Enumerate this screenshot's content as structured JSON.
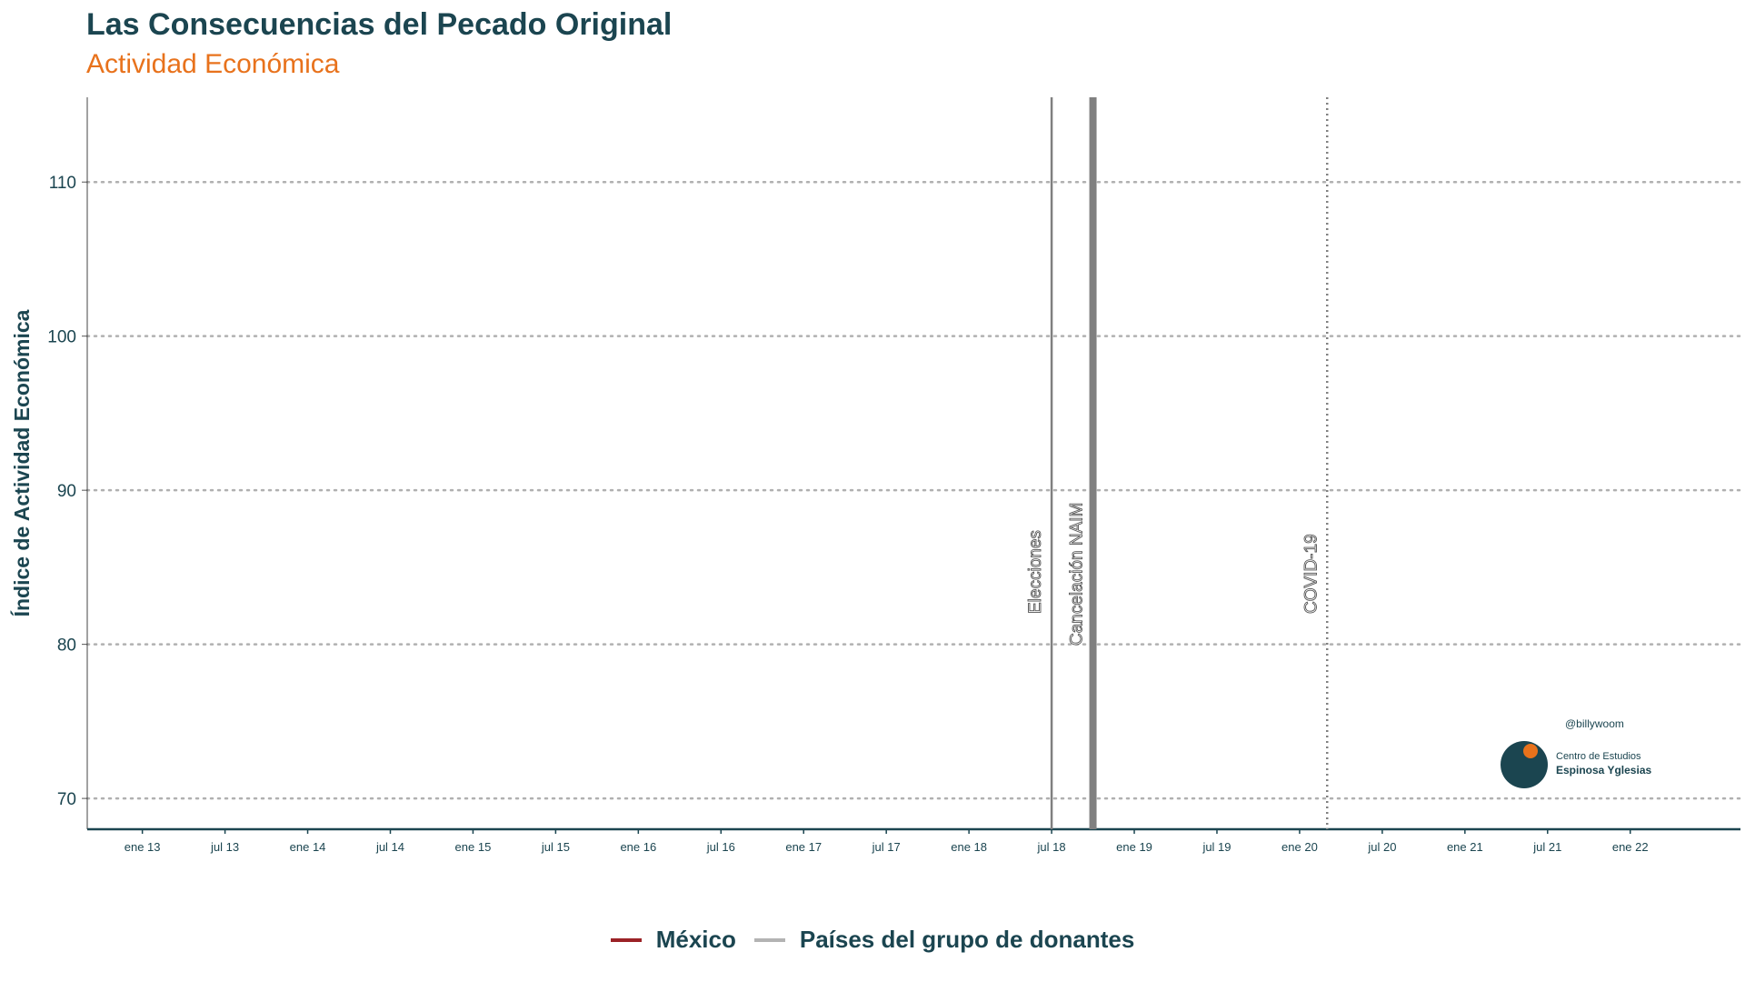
{
  "header": {
    "title": "Las Consecuencias del Pecado Original",
    "subtitle": "Actividad Económica"
  },
  "chart_data": {
    "type": "line",
    "title": "Las Consecuencias del Pecado Original",
    "subtitle": "Actividad Económica",
    "xlabel": "",
    "ylabel": "Índice de Actividad Económica",
    "ylim": [
      68,
      115.5
    ],
    "xlim": [
      "2012-09",
      "2022-09"
    ],
    "yticks": [
      70,
      80,
      90,
      100,
      110
    ],
    "xticks": [
      {
        "date": "2013-01",
        "label": "ene 13"
      },
      {
        "date": "2013-07",
        "label": "jul 13"
      },
      {
        "date": "2014-01",
        "label": "ene 14"
      },
      {
        "date": "2014-07",
        "label": "jul 14"
      },
      {
        "date": "2015-01",
        "label": "ene 15"
      },
      {
        "date": "2015-07",
        "label": "jul 15"
      },
      {
        "date": "2016-01",
        "label": "ene 16"
      },
      {
        "date": "2016-07",
        "label": "jul 16"
      },
      {
        "date": "2017-01",
        "label": "ene 17"
      },
      {
        "date": "2017-07",
        "label": "jul 17"
      },
      {
        "date": "2018-01",
        "label": "ene 18"
      },
      {
        "date": "2018-07",
        "label": "jul 18"
      },
      {
        "date": "2019-01",
        "label": "ene 19"
      },
      {
        "date": "2019-07",
        "label": "jul 19"
      },
      {
        "date": "2020-01",
        "label": "ene 20"
      },
      {
        "date": "2020-07",
        "label": "jul 20"
      },
      {
        "date": "2021-01",
        "label": "ene 21"
      },
      {
        "date": "2021-07",
        "label": "jul 21"
      },
      {
        "date": "2022-01",
        "label": "ene 22"
      }
    ],
    "grid": "horizontal dotted",
    "events": [
      {
        "date": "2018-07",
        "label": "Elecciones",
        "style": "solid"
      },
      {
        "date": "2018-10",
        "label": "Cancelación NAIM",
        "style": "solid-thick"
      },
      {
        "date": "2020-03",
        "label": "COVID-19",
        "style": "dotted"
      }
    ],
    "series": [
      {
        "name": "México",
        "color": "#9b2226",
        "values": []
      },
      {
        "name": "Países del grupo de donantes",
        "color": "#b3b3b3",
        "values": []
      }
    ],
    "legend_position": "bottom"
  },
  "brand": {
    "handle": "@billywoom",
    "org_line1": "Centro de Estudios",
    "org_line2": "Espinosa Yglesias"
  },
  "colors": {
    "title": "#1b4550",
    "subtitle": "#e8721c",
    "grid": "#b0b0b0",
    "event_line": "#808080"
  }
}
